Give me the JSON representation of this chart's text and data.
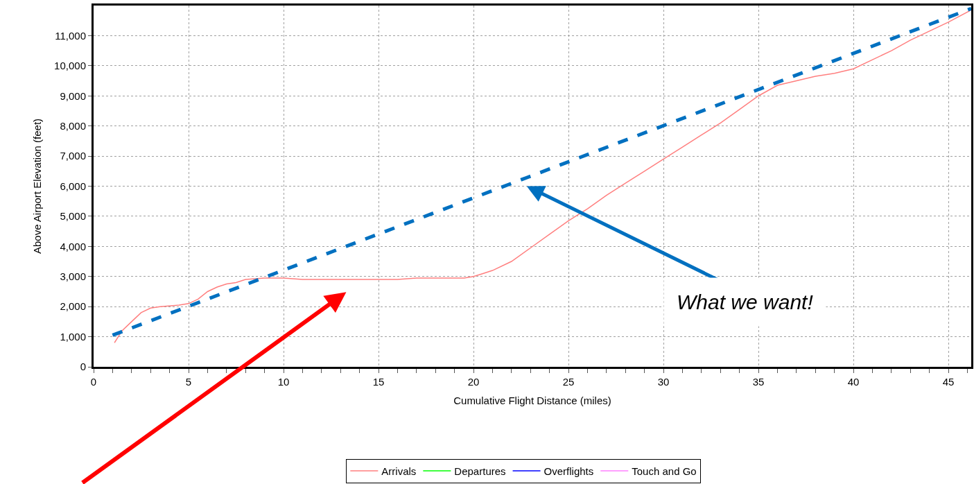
{
  "chart_data": {
    "type": "line",
    "xlabel": "Cumulative Flight Distance (miles)",
    "ylabel": "Above Airport Elevation (feet)",
    "xlim": [
      0,
      46.2
    ],
    "xticks": [
      0,
      5,
      10,
      15,
      20,
      25,
      30,
      35,
      40,
      45
    ],
    "ylim": [
      0,
      12000
    ],
    "yticks": [
      0,
      {
        "value": 1000,
        "label": "1,000"
      },
      {
        "value": 2000,
        "label": "2,000"
      },
      {
        "value": 3000,
        "label": "3,000"
      },
      {
        "value": 4000,
        "label": "4,000"
      },
      {
        "value": 5000,
        "label": "5,000"
      },
      {
        "value": 6000,
        "label": "6,000"
      },
      {
        "value": 7000,
        "label": "7,000"
      },
      {
        "value": 8000,
        "label": "8,000"
      },
      {
        "value": 9000,
        "label": "9,000"
      },
      {
        "value": 10000,
        "label": "10,000"
      },
      {
        "value": 11000,
        "label": "11,000"
      }
    ],
    "grid": true,
    "legend": "bottom",
    "series": [
      {
        "name": "Arrivals",
        "color": "#ff7f7f",
        "line_style": "solid",
        "x": [
          1.1,
          1.5,
          2,
          2.5,
          3,
          3.5,
          4.5,
          5,
          5.5,
          6,
          6.5,
          7,
          7.5,
          8,
          9,
          10,
          11,
          13,
          16,
          17,
          19.5,
          20,
          20.5,
          21,
          22,
          23,
          24,
          25,
          26,
          27,
          28,
          29,
          30,
          31,
          32,
          33,
          34,
          35,
          36,
          37,
          38,
          39,
          40,
          41,
          42,
          43,
          44,
          45,
          46.2
        ],
        "values": [
          800,
          1200,
          1500,
          1800,
          1950,
          2000,
          2050,
          2100,
          2250,
          2500,
          2650,
          2750,
          2800,
          2900,
          2950,
          2950,
          2900,
          2900,
          2900,
          2950,
          2950,
          3000,
          3100,
          3200,
          3500,
          3950,
          4400,
          4850,
          5250,
          5700,
          6100,
          6500,
          6900,
          7300,
          7700,
          8100,
          8550,
          9000,
          9350,
          9500,
          9650,
          9750,
          9900,
          10200,
          10500,
          10850,
          11150,
          11450,
          11850
        ]
      },
      {
        "name": "Departures",
        "color": "#00ff00",
        "line_style": "solid"
      },
      {
        "name": "Overflights",
        "color": "#0000ff",
        "line_style": "solid"
      },
      {
        "name": "Touch and Go",
        "color": "#ff80ff",
        "line_style": "solid"
      },
      {
        "color": "#0070c0",
        "line_style": "dashed",
        "x": [
          1,
          46.2
        ],
        "values": [
          1050,
          11900
        ]
      }
    ],
    "annotations": [
      "What we want!"
    ]
  }
}
